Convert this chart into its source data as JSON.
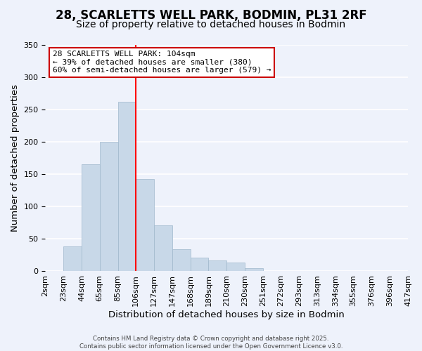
{
  "title_line1": "28, SCARLETTS WELL PARK, BODMIN, PL31 2RF",
  "title_line2": "Size of property relative to detached houses in Bodmin",
  "xlabel": "Distribution of detached houses by size in Bodmin",
  "ylabel": "Number of detached properties",
  "bin_labels": [
    "2sqm",
    "23sqm",
    "44sqm",
    "65sqm",
    "85sqm",
    "106sqm",
    "127sqm",
    "147sqm",
    "168sqm",
    "189sqm",
    "210sqm",
    "230sqm",
    "251sqm",
    "272sqm",
    "293sqm",
    "313sqm",
    "334sqm",
    "355sqm",
    "376sqm",
    "396sqm",
    "417sqm"
  ],
  "bar_heights": [
    0,
    38,
    165,
    200,
    262,
    143,
    71,
    34,
    21,
    17,
    13,
    5,
    0,
    0,
    0,
    0,
    0,
    0,
    0,
    0
  ],
  "bar_color": "#c8d8e8",
  "bar_edge_color": "#a0b8cc",
  "red_line_x": 4.5,
  "ylim": [
    0,
    350
  ],
  "yticks": [
    0,
    50,
    100,
    150,
    200,
    250,
    300,
    350
  ],
  "annotation_title": "28 SCARLETTS WELL PARK: 104sqm",
  "annotation_line2": "← 39% of detached houses are smaller (380)",
  "annotation_line3": "60% of semi-detached houses are larger (579) →",
  "annotation_box_color": "#ffffff",
  "annotation_box_edge": "#cc0000",
  "footer_line1": "Contains HM Land Registry data © Crown copyright and database right 2025.",
  "footer_line2": "Contains public sector information licensed under the Open Government Licence v3.0.",
  "background_color": "#eef2fb",
  "grid_color": "#ffffff",
  "title_fontsize": 12,
  "subtitle_fontsize": 10,
  "axis_label_fontsize": 9.5,
  "tick_fontsize": 8
}
